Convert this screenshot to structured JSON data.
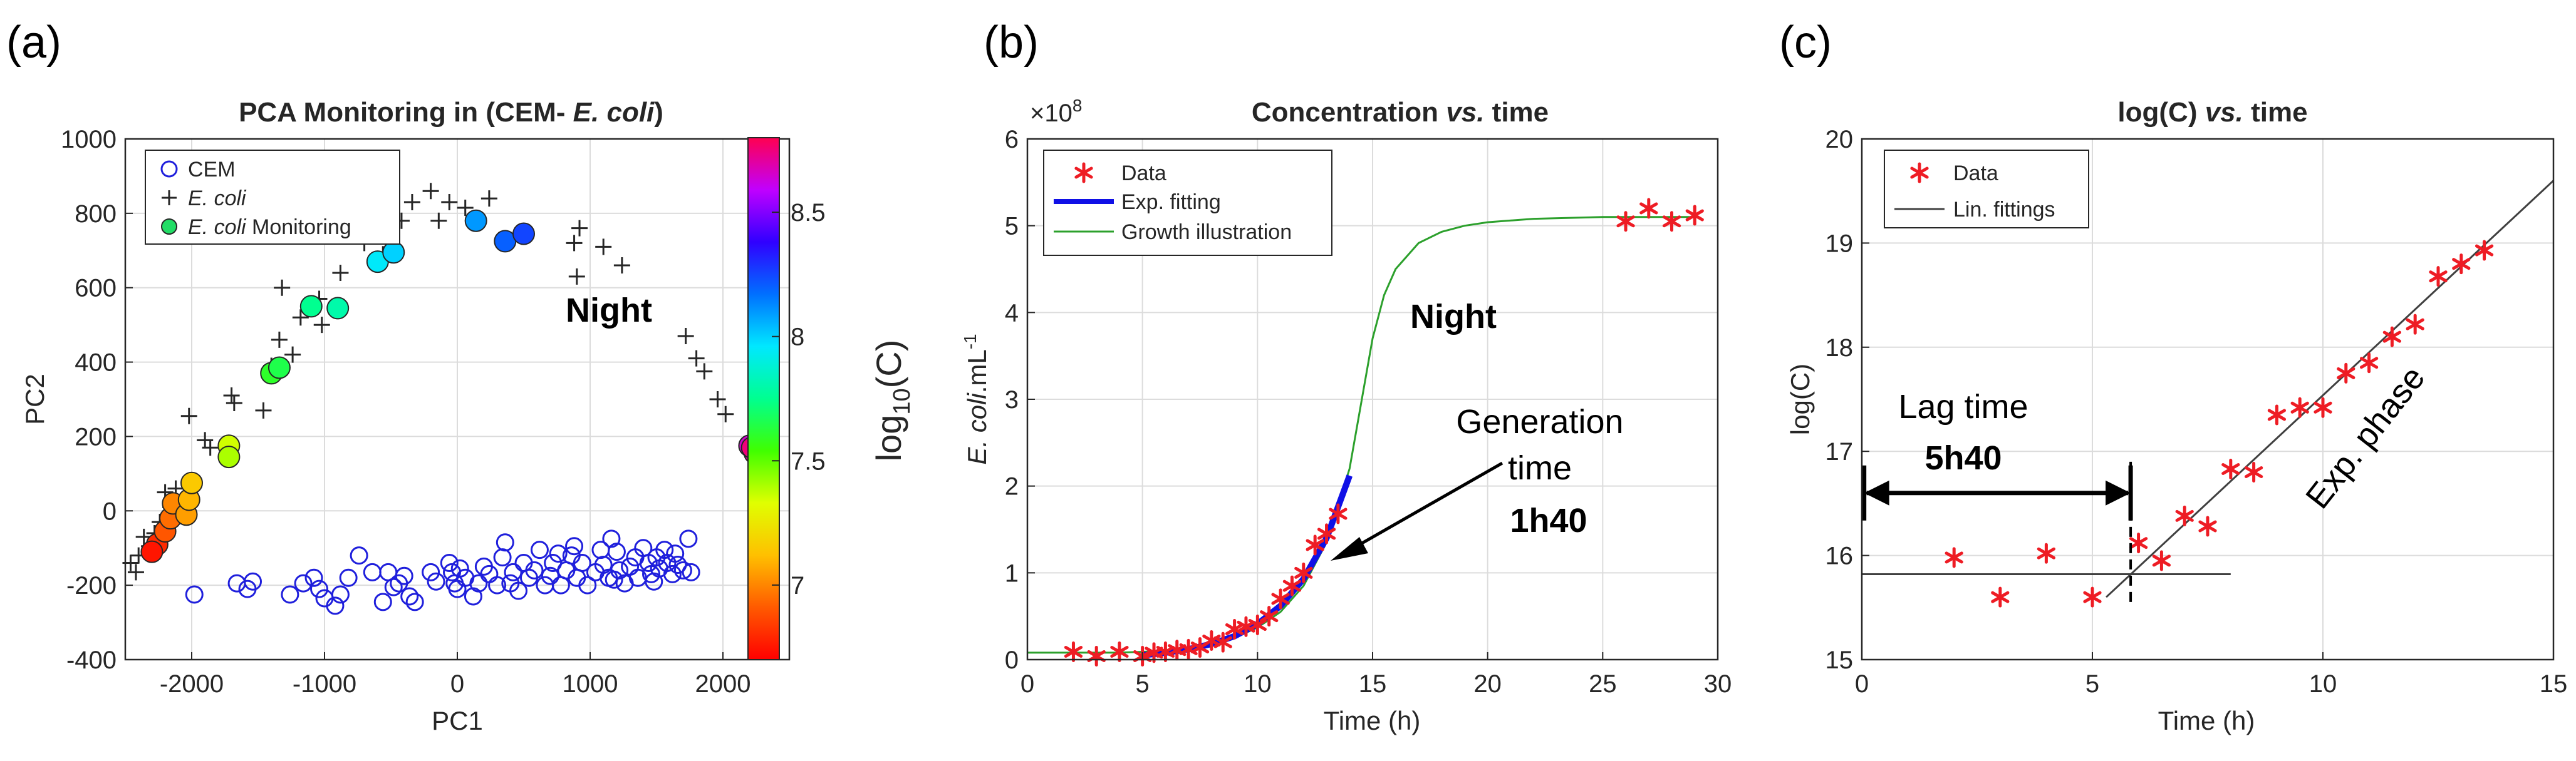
{
  "panels": {
    "a": {
      "label": "(a)"
    },
    "b": {
      "label": "(b)",
      "exponent": "×10",
      "exponent_power": "8"
    },
    "c": {
      "label": "(c)"
    }
  },
  "colors": {
    "cem": "#1f1fdc",
    "ecoli": "#262626",
    "data_star": "#ee1c24",
    "fit": "#1010e6",
    "growth": "#2ca02c",
    "lin": "#404040"
  },
  "chart_data": [
    {
      "id": "a",
      "type": "scatter",
      "title": "PCA Monitoring in (CEM- ",
      "title_italic": "E. coli",
      "title_end": ")",
      "xlabel": "PC1",
      "ylabel": "PC2",
      "xlim": [
        -2500,
        2500
      ],
      "ylim": [
        -400,
        1000
      ],
      "xticks": [
        -2000,
        -1000,
        0,
        1000,
        2000
      ],
      "yticks": [
        -400,
        -200,
        0,
        200,
        400,
        600,
        800,
        1000
      ],
      "grid": true,
      "legend": {
        "position": "top-left",
        "entries": [
          {
            "marker": "open-circle",
            "text": "CEM"
          },
          {
            "marker": "plus",
            "text": "",
            "italic": "E. coli"
          },
          {
            "marker": "filled-circle",
            "text": " Monitoring",
            "italic": "E. coli"
          }
        ]
      },
      "annotation": "Night",
      "colorbar": {
        "label": "log",
        "label_sub": "10",
        "label_end": "(C)",
        "range": [
          6.7,
          8.8
        ],
        "ticks": [
          7,
          7.5,
          8,
          8.5
        ]
      },
      "series": [
        {
          "name": "CEM",
          "points": [
            [
              -1980,
              -225
            ],
            [
              -1660,
              -195
            ],
            [
              -1580,
              -210
            ],
            [
              -1540,
              -190
            ],
            [
              -1260,
              -225
            ],
            [
              -1160,
              -195
            ],
            [
              -1080,
              -180
            ],
            [
              -1040,
              -210
            ],
            [
              -1000,
              -235
            ],
            [
              -920,
              -255
            ],
            [
              -880,
              -225
            ],
            [
              -820,
              -180
            ],
            [
              -740,
              -120
            ],
            [
              -640,
              -165
            ],
            [
              -560,
              -245
            ],
            [
              -520,
              -165
            ],
            [
              -480,
              -205
            ],
            [
              -440,
              -195
            ],
            [
              -400,
              -175
            ],
            [
              -360,
              -230
            ],
            [
              -320,
              -245
            ],
            [
              -60,
              -140
            ],
            [
              -40,
              -165
            ],
            [
              -20,
              -195
            ],
            [
              0,
              -210
            ],
            [
              20,
              -155
            ],
            [
              60,
              -180
            ],
            [
              120,
              -230
            ],
            [
              160,
              -195
            ],
            [
              200,
              -150
            ],
            [
              240,
              -170
            ],
            [
              300,
              -200
            ],
            [
              340,
              -125
            ],
            [
              360,
              -85
            ],
            [
              400,
              -195
            ],
            [
              420,
              -165
            ],
            [
              460,
              -215
            ],
            [
              500,
              -140
            ],
            [
              540,
              -180
            ],
            [
              580,
              -160
            ],
            [
              620,
              -105
            ],
            [
              660,
              -200
            ],
            [
              700,
              -175
            ],
            [
              720,
              -140
            ],
            [
              780,
              -200
            ],
            [
              820,
              -160
            ],
            [
              860,
              -120
            ],
            [
              900,
              -180
            ],
            [
              940,
              -140
            ],
            [
              980,
              -200
            ],
            [
              1040,
              -165
            ],
            [
              1080,
              -105
            ],
            [
              1100,
              -145
            ],
            [
              1140,
              -180
            ],
            [
              1160,
              -75
            ],
            [
              1200,
              -110
            ],
            [
              1220,
              -160
            ],
            [
              1260,
              -195
            ],
            [
              1300,
              -150
            ],
            [
              1340,
              -125
            ],
            [
              1360,
              -180
            ],
            [
              1400,
              -100
            ],
            [
              1440,
              -140
            ],
            [
              1460,
              -170
            ],
            [
              1500,
              -125
            ],
            [
              1520,
              -155
            ],
            [
              1560,
              -105
            ],
            [
              1580,
              -140
            ],
            [
              1620,
              -170
            ],
            [
              1660,
              -145
            ],
            [
              1700,
              -160
            ],
            [
              1740,
              -75
            ],
            [
              1760,
              -165
            ],
            [
              -200,
              -165
            ],
            [
              -160,
              -190
            ],
            [
              1180,
              -185
            ],
            [
              760,
              -115
            ],
            [
              1480,
              -190
            ],
            [
              1640,
              -115
            ],
            [
              880,
              -95
            ]
          ]
        },
        {
          "name": "E. coli",
          "points": [
            [
              -2460,
              -140
            ],
            [
              -2420,
              -165
            ],
            [
              -2400,
              -120
            ],
            [
              -2360,
              -70
            ],
            [
              -2320,
              -95
            ],
            [
              -2280,
              -60
            ],
            [
              -2240,
              -30
            ],
            [
              -2200,
              50
            ],
            [
              -2160,
              10
            ],
            [
              -2120,
              60
            ],
            [
              -2060,
              0
            ],
            [
              -2020,
              255
            ],
            [
              -1900,
              190
            ],
            [
              -1860,
              170
            ],
            [
              -1700,
              310
            ],
            [
              -1680,
              290
            ],
            [
              -1460,
              270
            ],
            [
              -1400,
              390
            ],
            [
              -1340,
              460
            ],
            [
              -1320,
              600
            ],
            [
              -1240,
              420
            ],
            [
              -1180,
              520
            ],
            [
              -1040,
              570
            ],
            [
              -1020,
              500
            ],
            [
              -880,
              640
            ],
            [
              -700,
              720
            ],
            [
              -560,
              690
            ],
            [
              -420,
              780
            ],
            [
              -340,
              830
            ],
            [
              -200,
              860
            ],
            [
              -140,
              780
            ],
            [
              -60,
              830
            ],
            [
              60,
              815
            ],
            [
              240,
              840
            ],
            [
              480,
              740
            ],
            [
              880,
              720
            ],
            [
              920,
              760
            ],
            [
              900,
              630
            ],
            [
              1100,
              710
            ],
            [
              1240,
              660
            ],
            [
              1720,
              470
            ],
            [
              1800,
              410
            ],
            [
              1860,
              375
            ],
            [
              1960,
              300
            ],
            [
              2020,
              260
            ]
          ]
        },
        {
          "name": "E. coli Monitoring",
          "points": [
            [
              -2260,
              -90,
              6.8
            ],
            [
              -2300,
              -110,
              6.75
            ],
            [
              -2200,
              -55,
              6.9
            ],
            [
              -2160,
              -20,
              6.95
            ],
            [
              -2140,
              20,
              7.0
            ],
            [
              -2040,
              -10,
              7.05
            ],
            [
              -2020,
              30,
              7.1
            ],
            [
              -2000,
              75,
              7.15
            ],
            [
              -1720,
              175,
              7.35
            ],
            [
              -1720,
              145,
              7.4
            ],
            [
              -1400,
              370,
              7.6
            ],
            [
              -1340,
              385,
              7.65
            ],
            [
              -1100,
              550,
              7.75
            ],
            [
              -900,
              545,
              7.8
            ],
            [
              -600,
              670,
              7.95
            ],
            [
              -480,
              695,
              8.0
            ],
            [
              140,
              780,
              8.1
            ],
            [
              360,
              725,
              8.2
            ],
            [
              500,
              745,
              8.25
            ],
            [
              2200,
              175,
              8.65
            ],
            [
              2240,
              155,
              8.7
            ],
            [
              2220,
              170,
              8.75
            ]
          ]
        }
      ]
    },
    {
      "id": "b",
      "type": "line",
      "title": "Concentration  ",
      "title_italic": "vs.",
      "title_end": " time",
      "xlabel": "Time (h)",
      "ylabel_italic": "E. coli",
      "ylabel": ".mL",
      "ylabel_sup": "-1",
      "xlim": [
        0,
        30
      ],
      "ylim": [
        0,
        6
      ],
      "xticks": [
        0,
        5,
        10,
        15,
        20,
        25,
        30
      ],
      "yticks": [
        0,
        1,
        2,
        3,
        4,
        5,
        6
      ],
      "grid": true,
      "legend": {
        "position": "top-left",
        "entries": [
          "Data",
          "Exp. fitting",
          "Growth illustration"
        ]
      },
      "annotation_night": "Night",
      "annotation_gen_1": "Generation",
      "annotation_gen_2": "time",
      "annotation_gen_3": "1h40",
      "series": [
        {
          "name": "Data",
          "x": [
            2,
            3,
            4,
            5,
            5.5,
            6,
            6.5,
            7,
            7.5,
            8,
            8.5,
            9,
            9.5,
            10,
            10.5,
            11,
            11.5,
            12,
            12.5,
            13,
            13.5,
            26,
            27,
            28,
            29
          ],
          "y": [
            0.09,
            0.04,
            0.09,
            0.04,
            0.08,
            0.09,
            0.11,
            0.12,
            0.14,
            0.22,
            0.2,
            0.35,
            0.38,
            0.4,
            0.5,
            0.7,
            0.85,
            1.0,
            1.32,
            1.45,
            1.68,
            5.05,
            5.2,
            5.05,
            5.12
          ]
        },
        {
          "name": "Exp. fitting",
          "x": [
            5,
            6,
            7,
            8,
            9,
            10,
            11,
            12,
            13,
            14
          ],
          "y": [
            0.05,
            0.08,
            0.12,
            0.18,
            0.27,
            0.41,
            0.62,
            0.93,
            1.4,
            2.12
          ]
        },
        {
          "name": "Growth illustration",
          "x": [
            0,
            2,
            4,
            5,
            6,
            7,
            8,
            9,
            10,
            11,
            12,
            13,
            14,
            14.5,
            15,
            15.5,
            16,
            17,
            18,
            19,
            20,
            22,
            25,
            27,
            29
          ],
          "y": [
            0.08,
            0.08,
            0.08,
            0.09,
            0.1,
            0.13,
            0.18,
            0.25,
            0.37,
            0.55,
            0.85,
            1.35,
            2.2,
            2.95,
            3.7,
            4.2,
            4.5,
            4.8,
            4.93,
            5.0,
            5.04,
            5.08,
            5.1,
            5.1,
            5.1
          ]
        }
      ]
    },
    {
      "id": "c",
      "type": "scatter",
      "title": "log(C) ",
      "title_italic": "vs.",
      "title_end": " time",
      "xlabel": "Time (h)",
      "ylabel": "log(C)",
      "xlim": [
        0,
        15
      ],
      "ylim": [
        15,
        20
      ],
      "xticks": [
        0,
        5,
        10,
        15
      ],
      "yticks": [
        15,
        16,
        17,
        18,
        19,
        20
      ],
      "grid": true,
      "legend": {
        "position": "top-left",
        "entries": [
          "Data",
          "Lin. fittings"
        ]
      },
      "annotation_lag_1": "Lag time",
      "annotation_lag_2": "5h40",
      "annotation_phase": "Exp. phase",
      "lag_time_x": 5.83,
      "series": [
        {
          "name": "Data",
          "x": [
            2,
            3,
            4,
            5,
            6,
            6.5,
            7,
            7.5,
            8,
            8.5,
            9,
            9.5,
            10,
            10.5,
            11,
            11.5,
            12,
            12.5,
            13,
            13.5
          ],
          "y": [
            15.98,
            15.6,
            16.02,
            15.6,
            16.12,
            15.95,
            16.38,
            16.28,
            16.83,
            16.8,
            17.35,
            17.42,
            17.42,
            17.75,
            17.85,
            18.1,
            18.22,
            18.68,
            18.8,
            18.93
          ]
        },
        {
          "name": "Lin. fittings",
          "segments": [
            {
              "x": [
                0,
                8
              ],
              "y": [
                15.82,
                15.82
              ]
            },
            {
              "x": [
                5.3,
                15
              ],
              "y": [
                15.6,
                19.6
              ]
            }
          ]
        }
      ]
    }
  ]
}
